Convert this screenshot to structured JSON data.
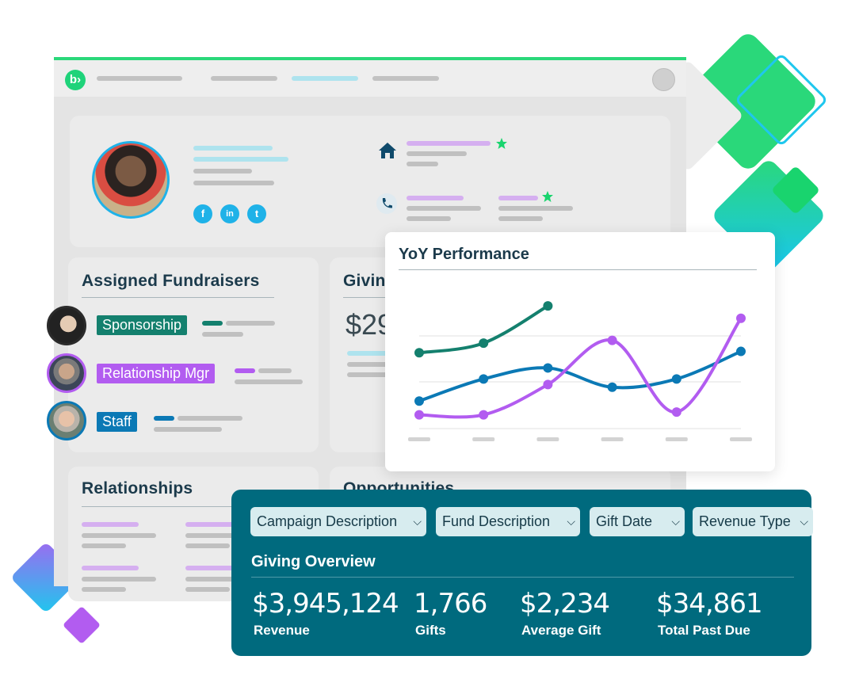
{
  "brand": {
    "logo_glyph": "b›",
    "accent": "#2ad87a",
    "teal": "#006a7e",
    "purple": "#b25cf0",
    "blue": "#0b79b5",
    "green": "#14806e"
  },
  "profile": {
    "icons": [
      "home-icon",
      "phone-icon",
      "star-icon",
      "facebook-icon",
      "linkedin-icon",
      "twitter-icon"
    ],
    "social": {
      "facebook": "f",
      "linkedin": "in",
      "twitter": "t"
    }
  },
  "fundraisers": {
    "title": "Assigned Fundraisers",
    "items": [
      {
        "tag": "Sponsorship",
        "color": "#14806e"
      },
      {
        "tag": "Relationship Mgr",
        "color": "#b25cf0"
      },
      {
        "tag": "Staff",
        "color": "#0b79b5"
      }
    ]
  },
  "giving_panel": {
    "title": "Giving",
    "value": "$29"
  },
  "relationships": {
    "title": "Relationships"
  },
  "opportunities": {
    "title": "Opportunities"
  },
  "yoy": {
    "title": "YoY Performance"
  },
  "chart_data": {
    "type": "line",
    "title": "YoY Performance",
    "xlabel": "",
    "ylabel": "",
    "x": [
      1,
      2,
      3,
      4,
      5,
      6
    ],
    "ylim": [
      0,
      100
    ],
    "grid": true,
    "series": [
      {
        "color": "#14806e",
        "values": [
          55,
          62,
          89,
          null,
          null,
          null
        ]
      },
      {
        "color": "#0b79b5",
        "values": [
          20,
          36,
          44,
          30,
          36,
          56
        ]
      },
      {
        "color": "#b25cf0",
        "values": [
          10,
          10,
          32,
          64,
          12,
          80
        ]
      }
    ]
  },
  "overview": {
    "filters": [
      "Campaign Description",
      "Fund Description",
      "Gift Date",
      "Revenue Type"
    ],
    "title": "Giving Overview",
    "stats": [
      {
        "value": "$3,945,124",
        "label": "Revenue"
      },
      {
        "value": "1,766",
        "label": "Gifts"
      },
      {
        "value": "$2,234",
        "label": "Average Gift"
      },
      {
        "value": "$34,861",
        "label": "Total Past Due"
      }
    ]
  }
}
